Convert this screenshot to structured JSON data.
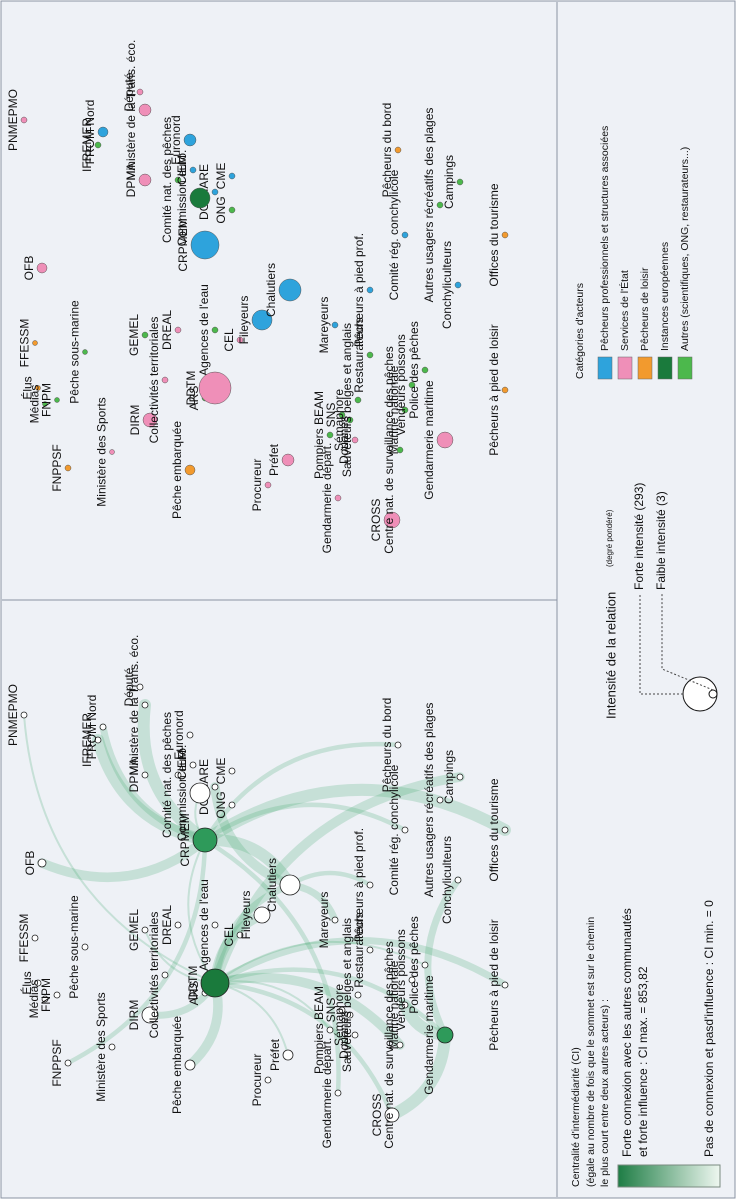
{
  "nodes": [
    {
      "label": "FNPPSF",
      "color": "#f29a2e"
    },
    {
      "label": "Élus",
      "color": "#f29a2e"
    },
    {
      "label": "Médias",
      "color": "#4cb84c"
    },
    {
      "label": "FFESSM",
      "color": "#f29a2e"
    },
    {
      "label": "FNPM",
      "color": "#4cb84c"
    },
    {
      "label": "Pêche sous-marine",
      "color": "#4cb84c"
    },
    {
      "label": "OFB",
      "color": "#ef8fb8"
    },
    {
      "label": "PNMEPMO",
      "color": "#ef8fb8"
    },
    {
      "label": "Ministère des Sports",
      "color": "#ef8fb8"
    },
    {
      "label": "DIRM",
      "color": "#ef8fb8"
    },
    {
      "label": "GEMEL",
      "color": "#4cb84c"
    },
    {
      "label": "DREAL",
      "color": "#ef8fb8"
    },
    {
      "label": "Collectivités territoriales",
      "color": "#ef8fb8"
    },
    {
      "label": "Agences de l'eau",
      "color": "#4cb84c"
    },
    {
      "label": "CEL",
      "color": "#ef8fb8"
    },
    {
      "label": "ARS",
      "color": "#4cb84c"
    },
    {
      "label": "Pêche embarquée",
      "color": "#f29a2e"
    },
    {
      "label": "Procureur",
      "color": "#ef8fb8"
    },
    {
      "label": "Préfet",
      "color": "#ef8fb8"
    },
    {
      "label": "DDTM",
      "color": "#ef8fb8"
    },
    {
      "label": "Fileyeurs",
      "color": "#2ea3dc"
    },
    {
      "label": "CRPMEM",
      "color": "#2ea3dc"
    },
    {
      "label": "DG MARE",
      "color": "#2ea3dc"
    },
    {
      "label": "IFREMER",
      "color": "#4cb84c"
    },
    {
      "label": "Comité nat. des pêches",
      "color": "#4cb84c"
    },
    {
      "label": "DPMA",
      "color": "#ef8fb8"
    },
    {
      "label": "CIEM",
      "color": "#2ea3dc"
    },
    {
      "label": "Commission euro.",
      "color": "#1a7a3c"
    },
    {
      "label": "ONG",
      "color": "#4cb84c"
    },
    {
      "label": "FROM Nord",
      "color": "#2ea3dc"
    },
    {
      "label": "Ministère de la Trans. éco.",
      "color": "#ef8fb8"
    },
    {
      "label": "Député",
      "color": "#ef8fb8"
    },
    {
      "label": "Euronord",
      "color": "#2ea3dc"
    },
    {
      "label": "CME",
      "color": "#2ea3dc"
    },
    {
      "label": "Chalutiers",
      "color": "#2ea3dc"
    },
    {
      "label": "Pompiers BEAM",
      "color": "#4cb84c"
    },
    {
      "label": "SNS",
      "color": "#4cb84c"
    },
    {
      "label": "Sémaphore",
      "color": "#4cb84c"
    },
    {
      "label": "Sauveteurs belges et anglais",
      "color": "#4cb84c"
    },
    {
      "label": "Mareyeurs",
      "color": "#2ea3dc"
    },
    {
      "label": "Restaurateurs",
      "color": "#4cb84c"
    },
    {
      "label": "Gendarmerie départ.",
      "color": "#ef8fb8"
    },
    {
      "label": "Douanes",
      "color": "#ef8fb8"
    },
    {
      "label": "CROSS",
      "color": "#ef8fb8"
    },
    {
      "label": "Marine nationale",
      "color": "#4cb84c"
    },
    {
      "label": "Vendeurs poissons",
      "color": "#4cb84c"
    },
    {
      "label": "Pêcheurs à pied prof.",
      "color": "#2ea3dc"
    },
    {
      "label": "Comité rég. conchylicole",
      "color": "#2ea3dc"
    },
    {
      "label": "Police des pêches",
      "color": "#4cb84c"
    },
    {
      "label": "Centre nat. de surveillance des pêches",
      "color": "#4cb84c"
    },
    {
      "label": "Gendarmerie maritime",
      "color": "#ef8fb8"
    },
    {
      "label": "Conchyliculteurs",
      "color": "#2ea3dc"
    },
    {
      "label": "Pêcheurs à pied de loisir",
      "color": "#f29a2e"
    },
    {
      "label": "Pêcheurs du bord",
      "color": "#f29a2e"
    },
    {
      "label": "Autres usagers récréatifs des plages",
      "color": "#4cb84c"
    },
    {
      "label": "Campings",
      "color": "#4cb84c"
    },
    {
      "label": "Offices du tourisme",
      "color": "#f29a2e"
    }
  ],
  "legend_ci": {
    "title": "Centralité d'intermédiarité (CI)",
    "lines": [
      "(égale au nombre de fois que le sommet est sur le chemin",
      "le plus court entre deux autres acteurs) :"
    ],
    "high": [
      "Forte connexion avec les autres communautés",
      "et forte influence : CI max. = 853,82"
    ],
    "low": "Pas de connexion et pasd'influence : CI min. = 0"
  },
  "legend_intensity": {
    "title": "Intensité de la relation",
    "note": "(degré pondéré)",
    "high": "Forte intensité (293)",
    "low": "Faible intensité (3)"
  },
  "legend_categories": {
    "title": "Catégories d'acteurs",
    "items": [
      {
        "label": "Pêcheurs professionnels et structures associées",
        "color": "#2ea3dc"
      },
      {
        "label": "Services de l'État",
        "color": "#ef8fb8"
      },
      {
        "label": "Pêcheurs de loisir",
        "color": "#f29a2e"
      },
      {
        "label": "Instances européennes",
        "color": "#1a7a3c"
      },
      {
        "label": "Autres (scientifiques, ONG, restaurateurs...)",
        "color": "#4cb84c"
      }
    ]
  }
}
